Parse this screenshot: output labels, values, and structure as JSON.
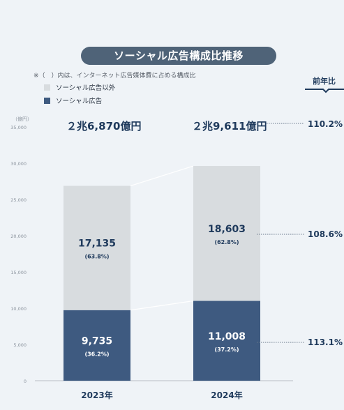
{
  "title": "ソーシャル広告構成比推移",
  "note": "※（　）内は、インターネット広告媒体費に占める構成比",
  "legend": [
    {
      "label": "ソーシャル広告以外",
      "color": "#d8dcdf"
    },
    {
      "label": "ソーシャル広告",
      "color": "#3e5a80"
    }
  ],
  "yoy_header": "前年比",
  "unit_label": "（億円）",
  "totals": [
    "２兆6,870億円",
    "２兆9,611億円"
  ],
  "yoy": {
    "total": "110.2%",
    "other": "108.6%",
    "social": "113.1%"
  },
  "colors": {
    "social": "#3e5a80",
    "other": "#d8dcdf",
    "accent": "#4f6378",
    "text": "#1f3a5c"
  },
  "chart_data": {
    "type": "bar",
    "stacked": true,
    "categories": [
      "2023年",
      "2024年"
    ],
    "series": [
      {
        "name": "ソーシャル広告",
        "values": [
          9735,
          11008
        ],
        "labels": [
          "9,735",
          "11,008"
        ],
        "shares": [
          "(36.2%)",
          "(37.2%)"
        ]
      },
      {
        "name": "ソーシャル広告以外",
        "values": [
          17135,
          18603
        ],
        "labels": [
          "17,135",
          "18,603"
        ],
        "shares": [
          "(63.8%)",
          "(62.8%)"
        ]
      }
    ],
    "ylim": [
      0,
      35000
    ],
    "yticks": [
      "0",
      "5,000",
      "10,000",
      "15,000",
      "20,000",
      "25,000",
      "30,000",
      "35,000"
    ],
    "grid": false,
    "legend_position": "top-left"
  }
}
